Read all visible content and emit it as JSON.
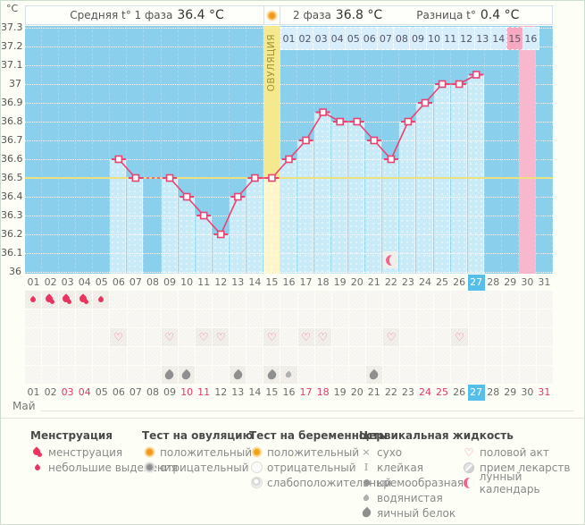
{
  "header": {
    "unit": "°C",
    "phase1_label": "Средняя t° 1 фаза",
    "phase1_value": "36.4 °C",
    "phase2_label": "2 фаза",
    "phase2_value": "36.8 °C",
    "diff_label": "Разница t°",
    "diff_value": "0.4 °C",
    "ovulation_header_icon": "ovulation-test-positive-icon"
  },
  "ovulation_band_label": "ОВУЛЯЦИЯ",
  "chart_data": {
    "type": "line",
    "x": [
      1,
      2,
      3,
      4,
      5,
      6,
      7,
      8,
      9,
      10,
      11,
      12,
      13,
      14,
      15,
      16,
      17,
      18,
      19,
      20,
      21,
      22,
      23,
      24,
      25,
      26,
      27,
      28,
      29,
      30,
      31
    ],
    "series": [
      {
        "name": "Базальная температура (°C)",
        "values": [
          null,
          null,
          null,
          null,
          null,
          36.6,
          36.5,
          null,
          36.5,
          36.4,
          36.3,
          36.2,
          36.4,
          36.5,
          36.5,
          36.6,
          36.7,
          36.85,
          36.8,
          36.8,
          36.7,
          36.6,
          36.8,
          36.9,
          37.0,
          37.0,
          37.05,
          null,
          null,
          null,
          null
        ]
      }
    ],
    "ylim": [
      36.0,
      37.3
    ],
    "ytick_labels": [
      "37.3",
      "37.2",
      "37.1",
      "37",
      "36.9",
      "36.8",
      "36.7",
      "36.6",
      "36.5",
      "36.4",
      "36.3",
      "36.2",
      "36.1",
      "36"
    ],
    "grid": true,
    "coverline_value": 36.5,
    "ovulation_day": 15,
    "highlighted_pink_day": 30,
    "dpo_labels": [
      "01",
      "02",
      "03",
      "04",
      "05",
      "06",
      "07",
      "08",
      "09",
      "10",
      "11",
      "12",
      "13",
      "14",
      "15",
      "16"
    ],
    "dpo_pink_label": "15",
    "lunar_calendar_day": 22,
    "lunar_calendar_value": 36.1,
    "legend_position": "bottom"
  },
  "calendar": {
    "month": "Май",
    "days": [
      "01",
      "02",
      "03",
      "04",
      "05",
      "06",
      "07",
      "08",
      "09",
      "10",
      "11",
      "12",
      "13",
      "14",
      "15",
      "16",
      "17",
      "18",
      "19",
      "20",
      "21",
      "22",
      "23",
      "24",
      "25",
      "26",
      "27",
      "28",
      "29",
      "30",
      "31"
    ],
    "weekend_days": [
      3,
      4,
      10,
      11,
      17,
      18,
      24,
      25,
      31
    ],
    "current_day": 27
  },
  "rows": {
    "menstruation": {
      "1": "spotting",
      "2": "menstruation",
      "3": "menstruation",
      "4": "menstruation",
      "5": "spotting"
    },
    "tests": {},
    "intercourse": {
      "6": "heart",
      "9": "heart",
      "11": "heart",
      "12": "heart",
      "15": "heart",
      "17": "heart",
      "18": "heart",
      "22": "heart",
      "26": "heart"
    },
    "medication": {},
    "cervical_fluid": {
      "9": "egg-white",
      "10": "egg-white",
      "13": "egg-white",
      "15": "egg-white",
      "16": "watery",
      "21": "egg-white"
    }
  },
  "legend": {
    "sections": [
      {
        "title": "Менструация",
        "items": [
          {
            "icon": "menstruation-icon",
            "label": "менструация"
          },
          {
            "icon": "spotting-icon",
            "label": "небольшие выделения"
          }
        ]
      },
      {
        "title": "Тест на овуляцию",
        "items": [
          {
            "icon": "ovulation-test-positive-icon",
            "label": "положительный"
          },
          {
            "icon": "ovulation-test-negative-icon",
            "label": "отрицательный"
          }
        ]
      },
      {
        "title": "Тест на беременность",
        "items": [
          {
            "icon": "pregnancy-test-positive-icon",
            "label": "положительный"
          },
          {
            "icon": "pregnancy-test-negative-icon",
            "label": "отрицательный"
          },
          {
            "icon": "pregnancy-test-weak-positive-icon",
            "label": "слабоположительный"
          }
        ]
      },
      {
        "title": "Цервикальная жидкость",
        "items": [
          {
            "icon": "dry-icon",
            "label": "сухо"
          },
          {
            "icon": "sticky-icon",
            "label": "клейкая"
          },
          {
            "icon": "creamy-icon",
            "label": "кремообразная"
          },
          {
            "icon": "watery-icon",
            "label": "водянистая"
          },
          {
            "icon": "egg-white-icon",
            "label": "яичный белок"
          }
        ]
      },
      {
        "title": "",
        "items": [
          {
            "icon": "intercourse-icon",
            "label": "половой акт"
          },
          {
            "icon": "medication-icon",
            "label": "прием лекарств"
          },
          {
            "icon": "lunar-calendar-icon",
            "label": "лунный календарь"
          }
        ]
      }
    ]
  },
  "colors": {
    "plot_background": "#8acfec",
    "bar_blue": "#c9eaf7",
    "ovulation_yellow": "#f4e98e",
    "period_pink": "#f8b7cc",
    "coverline_yellow": "#ece07f",
    "line_pink": "#e94372",
    "today_blue": "#56bfe9",
    "weekend_red": "#e3366b"
  }
}
